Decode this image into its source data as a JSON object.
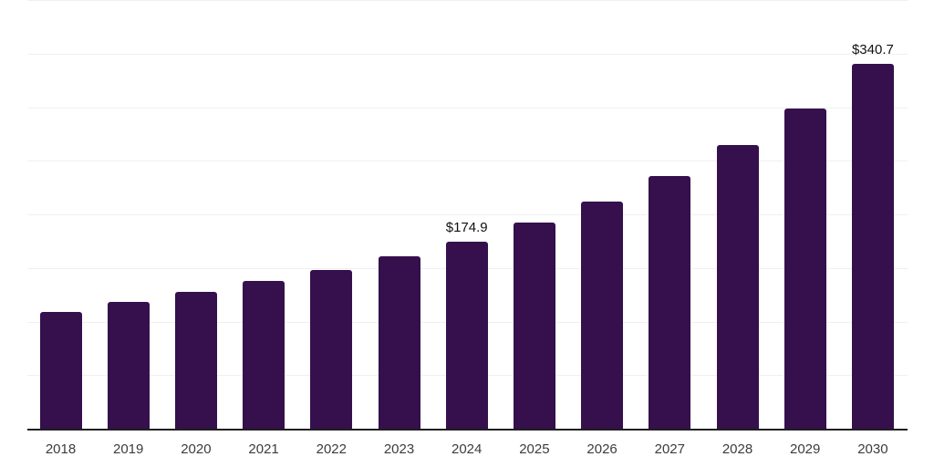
{
  "chart_data": {
    "type": "bar",
    "title": "",
    "xlabel": "",
    "ylabel": "",
    "categories": [
      "2018",
      "2019",
      "2020",
      "2021",
      "2022",
      "2023",
      "2024",
      "2025",
      "2026",
      "2027",
      "2028",
      "2029",
      "2030"
    ],
    "values": [
      109,
      118.5,
      127.5,
      137.5,
      148.5,
      161,
      174.9,
      192.5,
      212,
      236,
      265,
      299,
      340.7
    ],
    "point_labels": [
      "",
      "",
      "",
      "",
      "",
      "",
      "$174.9",
      "",
      "",
      "",
      "",
      "",
      "$340.7"
    ],
    "ylim": [
      0,
      400
    ],
    "gridline_step": 50,
    "grid": true,
    "legend_position": "none",
    "y_tick_labels_visible": false,
    "currency_prefix": "$"
  },
  "style": {
    "bar_color": "#35104D",
    "grid_color": "#f0f0f0",
    "axis_color": "#1f1f1f",
    "tick_color": "#3c3c3c",
    "label_color": "#111111",
    "background": "#ffffff"
  }
}
